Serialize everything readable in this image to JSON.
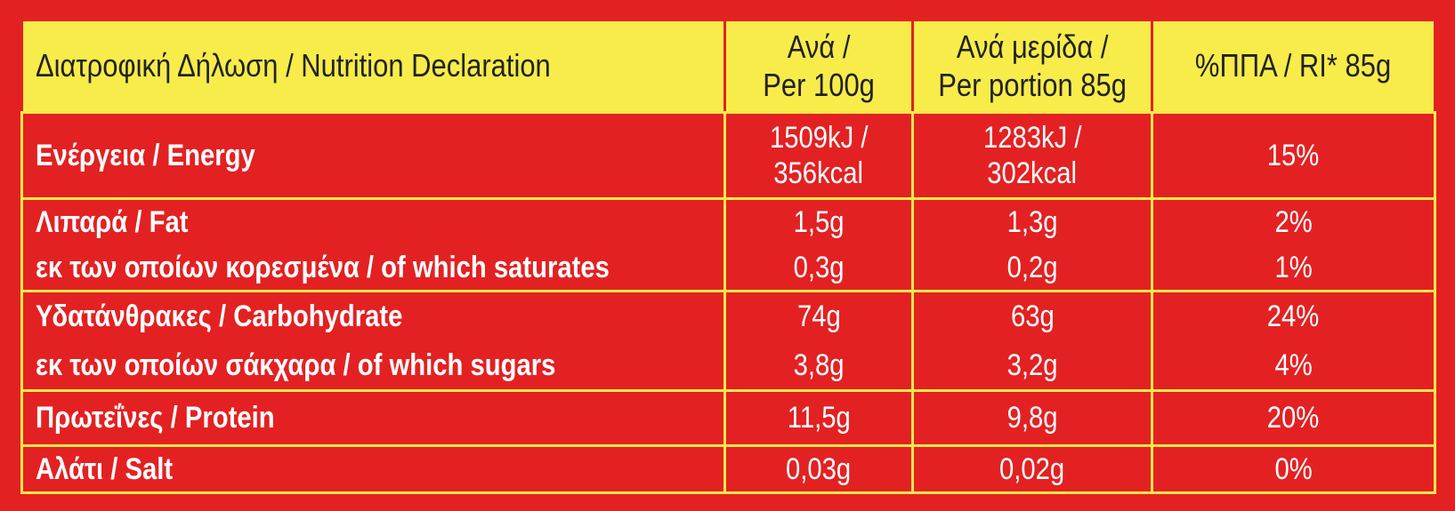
{
  "header": {
    "title": "Διατροφική Δήλωση / Nutrition Declaration",
    "columns": [
      [
        "Ανά /",
        "Per 100g"
      ],
      [
        "Ανά μερίδα /",
        "Per portion 85g"
      ],
      [
        "%ΠΠΑ / RI* 85g"
      ]
    ]
  },
  "rows": [
    {
      "labels": [
        "Ενέργεια / Energy"
      ],
      "per_100g": [
        "1509kJ /",
        "356kcal"
      ],
      "per_portion": [
        "1283kJ /",
        "302kcal"
      ],
      "ri": [
        "15%"
      ]
    },
    {
      "labels": [
        "Λιπαρά / Fat",
        "εκ των οποίων κορεσμένα / of which saturates"
      ],
      "per_100g": [
        "1,5g",
        "0,3g"
      ],
      "per_portion": [
        "1,3g",
        "0,2g"
      ],
      "ri": [
        "2%",
        "1%"
      ]
    },
    {
      "labels": [
        "Υδατάνθρακες / Carbohydrate",
        "εκ των οποίων σάκχαρα / of which sugars"
      ],
      "per_100g": [
        "74g",
        "3,8g"
      ],
      "per_portion": [
        "63g",
        "3,2g"
      ],
      "ri": [
        "24%",
        "4%"
      ]
    },
    {
      "labels": [
        "Πρωτεΐνες / Protein"
      ],
      "per_100g": [
        "11,5g"
      ],
      "per_portion": [
        "9,8g"
      ],
      "ri": [
        "20%"
      ]
    },
    {
      "labels": [
        "Αλάτι / Salt"
      ],
      "per_100g": [
        "0,03g"
      ],
      "per_portion": [
        "0,02g"
      ],
      "ri": [
        "0%"
      ]
    }
  ]
}
